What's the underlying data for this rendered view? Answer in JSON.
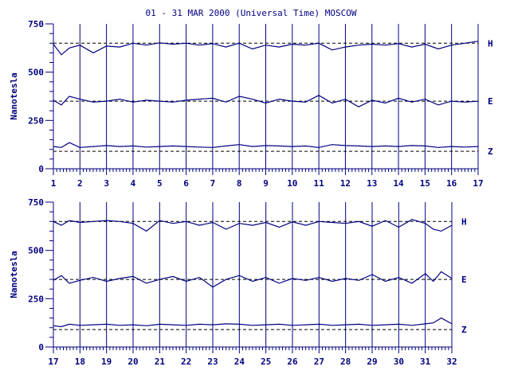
{
  "title": "01 - 31 MAR 2000 (Universal Time) MOSCOW",
  "colors": {
    "ink": "#000080",
    "background": "#ffffff"
  },
  "chart_data": [
    {
      "type": "line",
      "panel": "top",
      "xlim": [
        1,
        17
      ],
      "x_ticks": [
        "1",
        "2",
        "3",
        "4",
        "5",
        "6",
        "7",
        "8",
        "9",
        "10",
        "11",
        "12",
        "13",
        "14",
        "15",
        "16",
        "17"
      ],
      "ylabel": "Nanotesla",
      "ylim": [
        0,
        750
      ],
      "y_ticks": [
        "0",
        "250",
        "500",
        "750"
      ],
      "grid": "vertical lines at each day",
      "series": [
        {
          "name": "H",
          "baseline": 650,
          "x": [
            1,
            1.3,
            1.6,
            2,
            2.5,
            3,
            3.5,
            4,
            4.5,
            5,
            5.5,
            6,
            6.5,
            7,
            7.5,
            8,
            8.5,
            9,
            9.5,
            10,
            10.5,
            11,
            11.5,
            12,
            12.5,
            13,
            13.5,
            14,
            14.5,
            15,
            15.5,
            16,
            16.5,
            17
          ],
          "y": [
            645,
            590,
            625,
            640,
            600,
            635,
            630,
            650,
            640,
            652,
            645,
            650,
            640,
            648,
            630,
            650,
            620,
            640,
            630,
            645,
            640,
            650,
            615,
            630,
            640,
            645,
            640,
            648,
            630,
            645,
            620,
            640,
            650,
            660
          ]
        },
        {
          "name": "E",
          "baseline": 350,
          "x": [
            1,
            1.3,
            1.6,
            2,
            2.5,
            3,
            3.5,
            4,
            4.5,
            5,
            5.5,
            6,
            6.5,
            7,
            7.5,
            8,
            8.5,
            9,
            9.5,
            10,
            10.5,
            11,
            11.5,
            12,
            12.5,
            13,
            13.5,
            14,
            14.5,
            15,
            15.5,
            16,
            16.5,
            17
          ],
          "y": [
            355,
            330,
            375,
            360,
            345,
            350,
            360,
            345,
            355,
            350,
            345,
            355,
            360,
            365,
            345,
            375,
            360,
            340,
            360,
            350,
            345,
            380,
            340,
            360,
            320,
            355,
            340,
            365,
            345,
            360,
            330,
            350,
            345,
            350
          ]
        },
        {
          "name": "Z",
          "baseline": 90,
          "x": [
            1,
            1.3,
            1.6,
            2,
            2.5,
            3,
            3.5,
            4,
            4.5,
            5,
            5.5,
            6,
            6.5,
            7,
            7.5,
            8,
            8.5,
            9,
            9.5,
            10,
            10.5,
            11,
            11.5,
            12,
            12.5,
            13,
            13.5,
            14,
            14.5,
            15,
            15.5,
            16,
            16.5,
            17
          ],
          "y": [
            115,
            110,
            135,
            110,
            115,
            120,
            115,
            118,
            112,
            115,
            118,
            115,
            112,
            110,
            118,
            125,
            115,
            120,
            118,
            115,
            118,
            110,
            125,
            120,
            118,
            115,
            118,
            115,
            120,
            118,
            110,
            115,
            112,
            115
          ]
        }
      ]
    },
    {
      "type": "line",
      "panel": "bottom",
      "xlim": [
        17,
        32
      ],
      "x_ticks": [
        "17",
        "18",
        "19",
        "20",
        "21",
        "22",
        "23",
        "24",
        "25",
        "26",
        "27",
        "28",
        "29",
        "30",
        "31",
        "32"
      ],
      "ylabel": "Nanotesla",
      "ylim": [
        0,
        750
      ],
      "y_ticks": [
        "0",
        "250",
        "500",
        "750"
      ],
      "grid": "vertical lines at each day",
      "series": [
        {
          "name": "H",
          "baseline": 650,
          "x": [
            17,
            17.3,
            17.6,
            18,
            18.5,
            19,
            19.5,
            20,
            20.5,
            21,
            21.5,
            22,
            22.5,
            23,
            23.5,
            24,
            24.5,
            25,
            25.5,
            26,
            26.5,
            27,
            27.5,
            28,
            28.5,
            29,
            29.5,
            30,
            30.5,
            31,
            31.3,
            31.6,
            32
          ],
          "y": [
            650,
            630,
            655,
            645,
            650,
            655,
            650,
            640,
            600,
            655,
            640,
            650,
            630,
            645,
            610,
            640,
            630,
            645,
            620,
            648,
            630,
            650,
            645,
            640,
            650,
            625,
            655,
            620,
            660,
            640,
            610,
            600,
            630
          ]
        },
        {
          "name": "E",
          "baseline": 350,
          "x": [
            17,
            17.3,
            17.6,
            18,
            18.5,
            19,
            19.5,
            20,
            20.5,
            21,
            21.5,
            22,
            22.5,
            23,
            23.5,
            24,
            24.5,
            25,
            25.5,
            26,
            26.5,
            27,
            27.5,
            28,
            28.5,
            29,
            29.5,
            30,
            30.5,
            31,
            31.3,
            31.6,
            32
          ],
          "y": [
            345,
            370,
            330,
            345,
            360,
            340,
            355,
            365,
            330,
            350,
            365,
            340,
            360,
            310,
            350,
            370,
            340,
            360,
            330,
            355,
            345,
            360,
            340,
            355,
            345,
            375,
            340,
            360,
            330,
            380,
            340,
            390,
            355
          ]
        },
        {
          "name": "Z",
          "baseline": 90,
          "x": [
            17,
            17.3,
            17.6,
            18,
            18.5,
            19,
            19.5,
            20,
            20.5,
            21,
            21.5,
            22,
            22.5,
            23,
            23.5,
            24,
            24.5,
            25,
            25.5,
            26,
            26.5,
            27,
            27.5,
            28,
            28.5,
            29,
            29.5,
            30,
            30.5,
            31,
            31.3,
            31.6,
            32
          ],
          "y": [
            110,
            105,
            118,
            112,
            115,
            118,
            112,
            115,
            110,
            118,
            115,
            112,
            118,
            115,
            120,
            118,
            112,
            115,
            118,
            112,
            115,
            118,
            112,
            115,
            118,
            112,
            115,
            118,
            112,
            120,
            125,
            150,
            120
          ]
        }
      ]
    }
  ]
}
